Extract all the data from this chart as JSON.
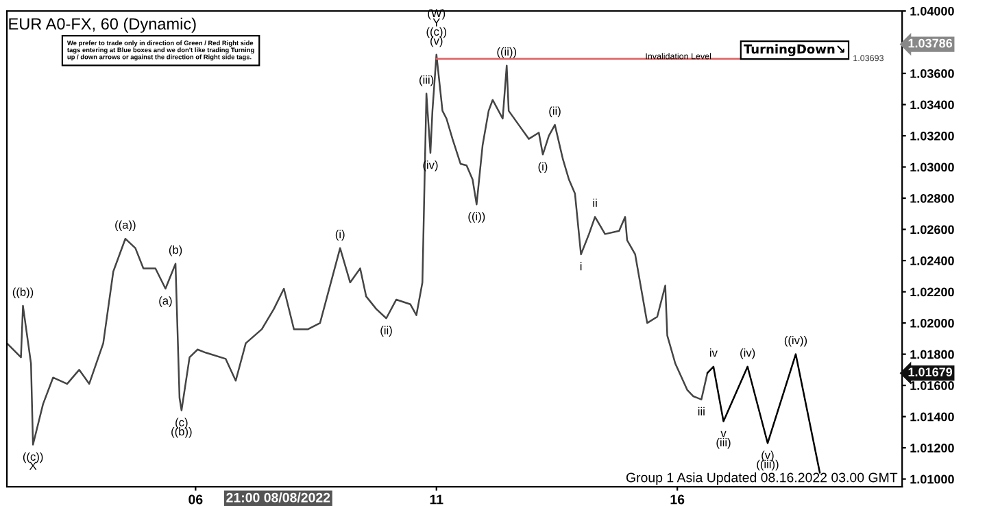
{
  "chart_data": {
    "type": "line",
    "title": "EUR A0-FX, 60 (Dynamic)",
    "series": [
      {
        "color": "#444444",
        "x": [
          "2022-08-02T02:00",
          "2022-08-02T09:00",
          "2022-08-02T10:00",
          "2022-08-02T14:00",
          "2022-08-02T15:00",
          "2022-08-02T20:00",
          "2022-08-03T01:00",
          "2022-08-03T08:00",
          "2022-08-03T14:00",
          "2022-08-03T19:00",
          "2022-08-04T02:00",
          "2022-08-04T07:00",
          "2022-08-04T13:00",
          "2022-08-04T18:00",
          "2022-08-04T22:00",
          "2022-08-05T04:00",
          "2022-08-05T09:00",
          "2022-08-05T14:00",
          "2022-08-05T16:00",
          "2022-08-05T17:00",
          "2022-08-05T21:00",
          "2022-08-06T01:00",
          "2022-08-06T05:00",
          "2022-08-06T15:00",
          "2022-08-06T20:00",
          "2022-08-07T01:00",
          "2022-08-07T09:00",
          "2022-08-07T15:00",
          "2022-08-07T20:00",
          "2022-08-08T01:00",
          "2022-08-08T08:00",
          "2022-08-08T14:00",
          "2022-08-09T00:00",
          "2022-08-09T05:00",
          "2022-08-09T10:00",
          "2022-08-09T13:00",
          "2022-08-09T18:00",
          "2022-08-09T23:00",
          "2022-08-10T04:00",
          "2022-08-10T11:00",
          "2022-08-10T14:00",
          "2022-08-10T17:00",
          "2022-08-10T19:00",
          "2022-08-10T21:00",
          "2022-08-10T22:00",
          "2022-08-11T00:00",
          "2022-08-11T03:00",
          "2022-08-11T05:00",
          "2022-08-11T08:00",
          "2022-08-11T12:00",
          "2022-08-11T15:00",
          "2022-08-11T18:00",
          "2022-08-11T20:00",
          "2022-08-11T23:00",
          "2022-08-12T02:00",
          "2022-08-12T04:00",
          "2022-08-12T09:00",
          "2022-08-12T11:00",
          "2022-08-12T12:00",
          "2022-08-12T17:00",
          "2022-08-12T22:00",
          "2022-08-13T03:00",
          "2022-08-13T05:00",
          "2022-08-13T08:00",
          "2022-08-13T11:00",
          "2022-08-13T15:00",
          "2022-08-13T18:00",
          "2022-08-13T21:00",
          "2022-08-14T00:00",
          "2022-08-14T04:00",
          "2022-08-14T07:00",
          "2022-08-14T12:00",
          "2022-08-14T19:00",
          "2022-08-14T22:00",
          "2022-08-14T23:00",
          "2022-08-15T03:00",
          "2022-08-15T09:00",
          "2022-08-15T14:00",
          "2022-08-15T18:00",
          "2022-08-15T19:00",
          "2022-08-15T23:00",
          "2022-08-16T05:00",
          "2022-08-16T08:00",
          "2022-08-16T12:00",
          "2022-08-16T15:00"
        ],
        "values": [
          1.0187,
          1.0178,
          1.0211,
          1.0174,
          1.0122,
          1.0148,
          1.0165,
          1.0161,
          1.017,
          1.0161,
          1.0187,
          1.0233,
          1.0254,
          1.0248,
          1.0235,
          1.0235,
          1.0222,
          1.0238,
          1.0152,
          1.0144,
          1.0178,
          1.0183,
          1.0181,
          1.0177,
          1.0163,
          1.0187,
          1.0196,
          1.0209,
          1.0222,
          1.0196,
          1.0196,
          1.02,
          1.0248,
          1.0226,
          1.0235,
          1.0217,
          1.0209,
          1.0203,
          1.0215,
          1.0212,
          1.0205,
          1.0226,
          1.0347,
          1.0309,
          1.0336,
          1.0372,
          1.0336,
          1.0331,
          1.0318,
          1.0302,
          1.0301,
          1.0292,
          1.0276,
          1.0314,
          1.0336,
          1.0343,
          1.0331,
          1.0365,
          1.0336,
          1.0327,
          1.0318,
          1.0322,
          1.0308,
          1.032,
          1.0327,
          1.0305,
          1.0292,
          1.0283,
          1.0244,
          1.0257,
          1.0268,
          1.0257,
          1.0259,
          1.0268,
          1.0253,
          1.0244,
          1.02,
          1.0204,
          1.0224,
          1.0192,
          1.0174,
          1.0157,
          1.0153,
          1.0151,
          1.0168
        ]
      },
      {
        "color": "#000000",
        "x": [
          "2022-08-16T15:00",
          "2022-08-16T18:00",
          "2022-08-16T23:00",
          "2022-08-17T11:00",
          "2022-08-17T21:00",
          "2022-08-18T11:00",
          "2022-08-18T23:00"
        ],
        "values": [
          1.0168,
          1.0172,
          1.0137,
          1.0172,
          1.0123,
          1.018,
          1.0104
        ]
      }
    ],
    "xlim": [
      "2022-08-02T02:00",
      "2022-08-20T16:00"
    ],
    "ylim": [
      1.0095,
      1.04
    ],
    "xticks": [
      {
        "value": "2022-08-06",
        "label": "06"
      },
      {
        "value": "2022-08-11",
        "label": "11"
      },
      {
        "value": "2022-08-16",
        "label": "16"
      }
    ],
    "yticks": [
      {
        "value": 1.01,
        "label": "1.01000"
      },
      {
        "value": 1.012,
        "label": "1.01200"
      },
      {
        "value": 1.014,
        "label": "1.01400"
      },
      {
        "value": 1.016,
        "label": "1.01600"
      },
      {
        "value": 1.018,
        "label": "1.01800"
      },
      {
        "value": 1.02,
        "label": "1.02000"
      },
      {
        "value": 1.022,
        "label": "1.02200"
      },
      {
        "value": 1.024,
        "label": "1.02400"
      },
      {
        "value": 1.026,
        "label": "1.02600"
      },
      {
        "value": 1.028,
        "label": "1.02800"
      },
      {
        "value": 1.03,
        "label": "1.03000"
      },
      {
        "value": 1.032,
        "label": "1.03200"
      },
      {
        "value": 1.034,
        "label": "1.03400"
      },
      {
        "value": 1.036,
        "label": "1.03600"
      },
      {
        "value": 1.04,
        "label": "1.04000"
      }
    ],
    "grid": false,
    "legend": false,
    "ref_lines": [
      {
        "axis": "y",
        "value": 1.03693,
        "label": "1.03693",
        "color": "#e06060"
      }
    ],
    "annotations": [
      "We prefer to trade only in direction of Green / Red Right side tags entering at Blue boxes and we don't like trading Turning up / down arrows or against the direction of Right side tags.",
      "Invalidation Level",
      "TurningDown↘",
      "Group 1 Asia Updated 08.16.2022 03.00 GMT",
      "1.03786",
      "1.01679",
      "21:00 08/08/2022",
      {
        "text": "((b))",
        "x": "2022-08-02T10:00",
        "y": 1.0211
      },
      {
        "text": "((c))\nX",
        "x": "2022-08-02T15:00",
        "y": 1.0122
      },
      {
        "text": "((a))",
        "x": "2022-08-04T13:00",
        "y": 1.0254
      },
      {
        "text": "(a)",
        "x": "2022-08-05T09:00",
        "y": 1.0222
      },
      {
        "text": "(b)",
        "x": "2022-08-05T14:00",
        "y": 1.0238
      },
      {
        "text": "(c)\n((b))",
        "x": "2022-08-05T17:00",
        "y": 1.0144
      },
      {
        "text": "(i)",
        "x": "2022-08-09T00:00",
        "y": 1.0248
      },
      {
        "text": "(ii)",
        "x": "2022-08-09T23:00",
        "y": 1.0203
      },
      {
        "text": "(iii)",
        "x": "2022-08-10T19:00",
        "y": 1.0347
      },
      {
        "text": "(iv)",
        "x": "2022-08-10T21:00",
        "y": 1.0309
      },
      {
        "text": "(W)\nY\n((c))\n(v)",
        "x": "2022-08-11T00:00",
        "y": 1.0372
      },
      {
        "text": "((i))",
        "x": "2022-08-11T20:00",
        "y": 1.0276
      },
      {
        "text": "((ii))",
        "x": "2022-08-12T11:00",
        "y": 1.0365
      },
      {
        "text": "(i)",
        "x": "2022-08-13T05:00",
        "y": 1.0308
      },
      {
        "text": "(ii)",
        "x": "2022-08-13T11:00",
        "y": 1.0327
      },
      {
        "text": "i",
        "x": "2022-08-14T00:00",
        "y": 1.0244
      },
      {
        "text": "ii",
        "x": "2022-08-14T07:00",
        "y": 1.0268
      },
      {
        "text": "iii",
        "x": "2022-08-16T12:00",
        "y": 1.0151
      },
      {
        "text": "iv",
        "x": "2022-08-16T18:00",
        "y": 1.0172
      },
      {
        "text": "v\n(iii)",
        "x": "2022-08-16T23:00",
        "y": 1.0137
      },
      {
        "text": "(iv)",
        "x": "2022-08-17T11:00",
        "y": 1.0172
      },
      {
        "text": "(v)\n((iii))",
        "x": "2022-08-17T21:00",
        "y": 1.0123
      },
      {
        "text": "((iv))",
        "x": "2022-08-18T11:00",
        "y": 1.018
      }
    ]
  }
}
